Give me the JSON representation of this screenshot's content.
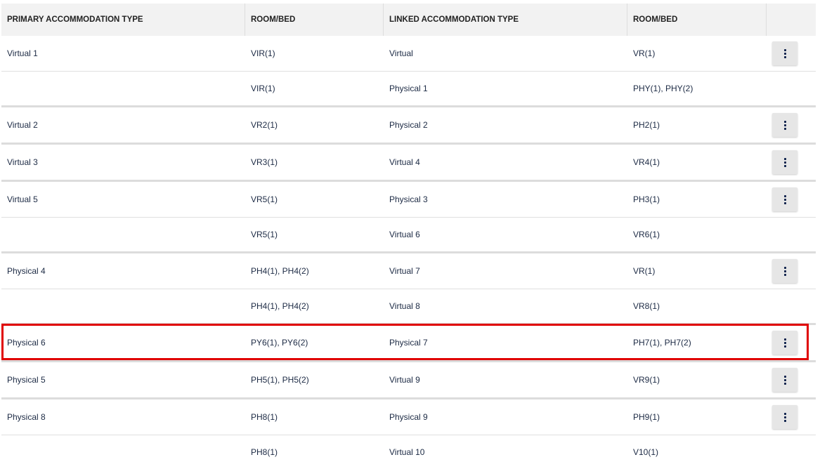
{
  "columns": [
    "PRIMARY ACCOMMODATION TYPE",
    "ROOM/BED",
    "LINKED ACCOMMODATION TYPE",
    "ROOM/BED",
    ""
  ],
  "rows": [
    {
      "primary": "Virtual 1",
      "primary_room": "VIR(1)",
      "linked": "Virtual",
      "linked_room": "VR(1)",
      "has_menu": true,
      "group_start": true
    },
    {
      "primary": "",
      "primary_room": "VIR(1)",
      "linked": "Physical 1",
      "linked_room": "PHY(1), PHY(2)",
      "has_menu": false,
      "group_start": false
    },
    {
      "primary": "Virtual 2",
      "primary_room": "VR2(1)",
      "linked": "Physical 2",
      "linked_room": "PH2(1)",
      "has_menu": true,
      "group_start": true
    },
    {
      "primary": "Virtual 3",
      "primary_room": "VR3(1)",
      "linked": "Virtual 4",
      "linked_room": "VR4(1)",
      "has_menu": true,
      "group_start": true
    },
    {
      "primary": "Virtual 5",
      "primary_room": "VR5(1)",
      "linked": "Physical 3",
      "linked_room": "PH3(1)",
      "has_menu": true,
      "group_start": true
    },
    {
      "primary": "",
      "primary_room": "VR5(1)",
      "linked": "Virtual 6",
      "linked_room": "VR6(1)",
      "has_menu": false,
      "group_start": false
    },
    {
      "primary": "Physical 4",
      "primary_room": "PH4(1), PH4(2)",
      "linked": "Virtual 7",
      "linked_room": "VR(1)",
      "has_menu": true,
      "group_start": true
    },
    {
      "primary": "",
      "primary_room": "PH4(1), PH4(2)",
      "linked": "Virtual 8",
      "linked_room": "VR8(1)",
      "has_menu": false,
      "group_start": false
    },
    {
      "primary": "Physical 6",
      "primary_room": "PY6(1), PY6(2)",
      "linked": "Physical 7",
      "linked_room": "PH7(1), PH7(2)",
      "has_menu": true,
      "group_start": true,
      "highlighted": true
    },
    {
      "primary": "Physical 5",
      "primary_room": "PH5(1), PH5(2)",
      "linked": "Virtual 9",
      "linked_room": "VR9(1)",
      "has_menu": true,
      "group_start": true
    },
    {
      "primary": "Physical 8",
      "primary_room": "PH8(1)",
      "linked": "Physical 9",
      "linked_room": "PH9(1)",
      "has_menu": true,
      "group_start": true
    },
    {
      "primary": "",
      "primary_room": "PH8(1)",
      "linked": "Virtual 10",
      "linked_room": "V10(1)",
      "has_menu": false,
      "group_start": false
    }
  ],
  "colors": {
    "highlight": "#e00000",
    "header_bg": "#f2f2f2",
    "menu_icon": "#0b1f4a"
  },
  "icons": {
    "row_menu": "more-vertical-icon"
  }
}
